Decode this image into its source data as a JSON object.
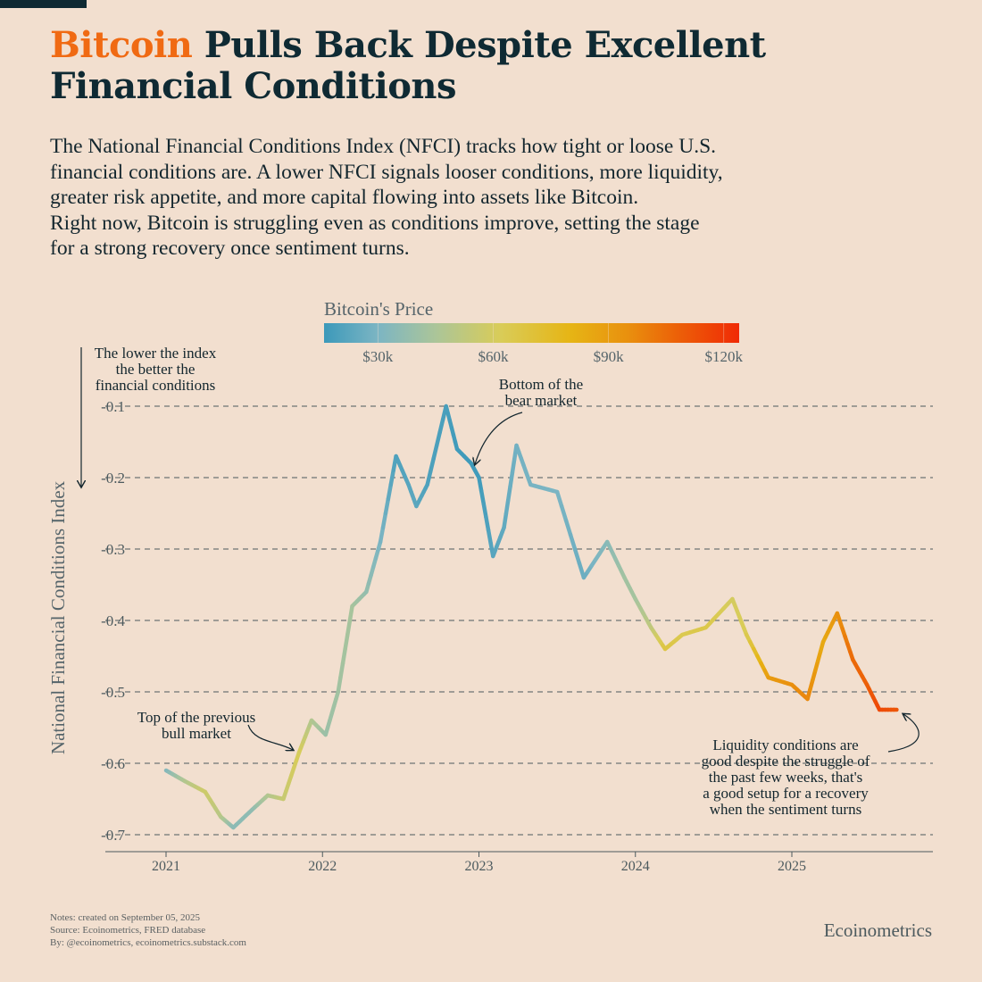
{
  "title": {
    "highlight": "Bitcoin",
    "rest_line1": " Pulls Back Despite Excellent",
    "line2": "Financial Conditions"
  },
  "subtitle_lines": [
    "The National Financial Conditions Index (NFCI) tracks how tight or loose U.S.",
    "financial conditions are. A lower NFCI signals looser conditions, more liquidity,",
    "greater risk appetite, and more capital flowing into assets like Bitcoin.",
    "Right now, Bitcoin is struggling even as conditions improve, setting the stage",
    "for a strong recovery once sentiment turns."
  ],
  "colors": {
    "background": "#f2dfcf",
    "title": "#0f2a33",
    "accent": "#f06a13"
  },
  "chart_data": {
    "type": "line",
    "ylabel": "National Financial Conditions Index",
    "xlabel": "",
    "y_inverted": true,
    "ylim": [
      -0.725,
      -0.075
    ],
    "xlim": [
      2020.8,
      2025.95
    ],
    "yticks": [
      -0.1,
      -0.2,
      -0.3,
      -0.4,
      -0.5,
      -0.6,
      -0.7
    ],
    "ytick_labels": [
      "-0.1",
      "-0.2",
      "-0.3",
      "-0.4",
      "-0.5",
      "-0.6",
      "-0.7"
    ],
    "xticks": [
      2021,
      2022,
      2023,
      2024,
      2025
    ],
    "xtick_labels": [
      "2021",
      "2022",
      "2023",
      "2024",
      "2025"
    ],
    "grid": "horizontal dashed",
    "colorbar": {
      "title": "Bitcoin's Price",
      "range": [
        16000,
        124000
      ],
      "ticks": [
        30000,
        60000,
        90000,
        120000
      ],
      "tick_labels": [
        "$30k",
        "$60k",
        "$90k",
        "$120k"
      ],
      "stops": [
        [
          16000,
          "#3c99ba"
        ],
        [
          30000,
          "#7cb5c3"
        ],
        [
          45000,
          "#abc599"
        ],
        [
          62000,
          "#d9cc58"
        ],
        [
          80000,
          "#e6b515"
        ],
        [
          95000,
          "#e9900e"
        ],
        [
          108000,
          "#ec6008"
        ],
        [
          124000,
          "#f02a05"
        ]
      ]
    },
    "series": [
      {
        "name": "NFCI",
        "x": [
          2021.0,
          2021.12,
          2021.25,
          2021.35,
          2021.43,
          2021.55,
          2021.65,
          2021.75,
          2021.85,
          2021.93,
          2022.02,
          2022.1,
          2022.19,
          2022.28,
          2022.37,
          2022.47,
          2022.55,
          2022.6,
          2022.67,
          2022.79,
          2022.86,
          2022.95,
          2023.0,
          2023.09,
          2023.16,
          2023.24,
          2023.33,
          2023.5,
          2023.67,
          2023.82,
          2023.93,
          2024.0,
          2024.1,
          2024.19,
          2024.3,
          2024.45,
          2024.62,
          2024.71,
          2024.85,
          2025.0,
          2025.1,
          2025.2,
          2025.29,
          2025.39,
          2025.48,
          2025.56,
          2025.67
        ],
        "y": [
          -0.61,
          -0.625,
          -0.64,
          -0.675,
          -0.69,
          -0.665,
          -0.645,
          -0.65,
          -0.585,
          -0.54,
          -0.56,
          -0.5,
          -0.38,
          -0.36,
          -0.29,
          -0.17,
          -0.21,
          -0.24,
          -0.21,
          -0.1,
          -0.16,
          -0.18,
          -0.2,
          -0.31,
          -0.27,
          -0.155,
          -0.21,
          -0.22,
          -0.34,
          -0.29,
          -0.34,
          -0.37,
          -0.41,
          -0.44,
          -0.42,
          -0.41,
          -0.37,
          -0.42,
          -0.48,
          -0.49,
          -0.51,
          -0.43,
          -0.39,
          -0.455,
          -0.49,
          -0.525,
          -0.525
        ],
        "price": [
          32000,
          47000,
          58000,
          50000,
          35000,
          36000,
          47000,
          55000,
          62000,
          48000,
          40000,
          42000,
          44000,
          38000,
          30000,
          20000,
          22000,
          23000,
          20000,
          19000,
          17000,
          16500,
          17000,
          22000,
          24000,
          28000,
          29000,
          30000,
          26000,
          34000,
          42000,
          43000,
          52000,
          68000,
          64000,
          66000,
          60000,
          63000,
          90000,
          95000,
          98000,
          84000,
          94000,
          105000,
          108000,
          115000,
          111000
        ]
      }
    ],
    "annotations": {
      "direction_note": [
        "The lower the index",
        "the better the",
        "financial conditions"
      ],
      "bear_bottom": [
        "Bottom of the",
        "bear market"
      ],
      "bull_top": [
        "Top of the previous",
        "bull market"
      ],
      "liquidity": [
        "Liquidity conditions are",
        "good despite the struggle of",
        "the past few weeks, that's",
        "a good setup for a recovery",
        "when the sentiment turns"
      ]
    }
  },
  "footer": {
    "notes": [
      "Notes: created on September 05, 2025",
      "Source: Ecoinometrics, FRED database",
      "By: @ecoinometrics, ecoinometrics.substack.com"
    ],
    "brand": "Ecoinometrics"
  }
}
